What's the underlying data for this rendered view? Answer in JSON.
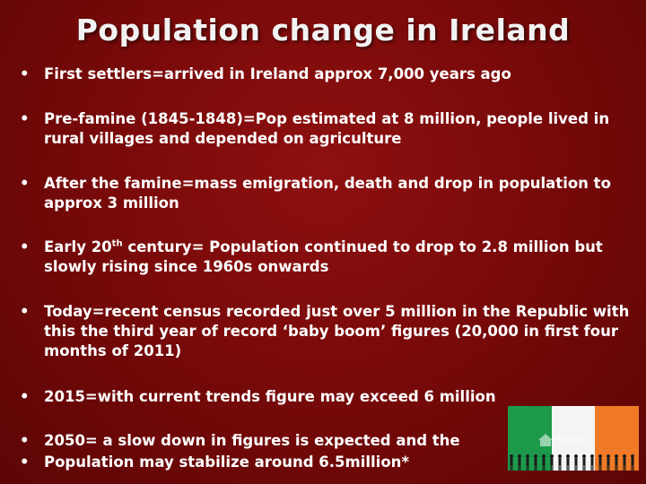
{
  "slide": {
    "title": "Population change in Ireland",
    "bullets": [
      {
        "text": "First settlers=arrived in Ireland approx 7,000 years ago"
      },
      {
        "text": "Pre-famine (1845-1848)=Pop estimated at 8 million, people lived in rural villages and depended on agriculture"
      },
      {
        "text": "After the famine=mass emigration, death and drop in population to approx 3 million"
      },
      {
        "text_before": "Early 20",
        "superscript": "th",
        "text_after": " century= Population continued to drop to 2.8 million but slowly rising since 1960s onwards"
      },
      {
        "text": "Today=recent census recorded just over 5 million in the Republic with this the third year of record ‘baby boom’ figures (20,000 in first four months of 2011)"
      },
      {
        "text": "2015=with current trends figure may exceed 6 million"
      },
      {
        "text": "2050= a slow down in figures is expected and the"
      },
      {
        "text": "Population may stabilize around 6.5million*"
      }
    ],
    "bullet_symbol": "•",
    "image": {
      "description_icon": "irish-flag-with-people-silhouettes",
      "flag_colors": [
        "#1c9a4a",
        "#f4f4f4",
        "#f07a26"
      ]
    }
  }
}
